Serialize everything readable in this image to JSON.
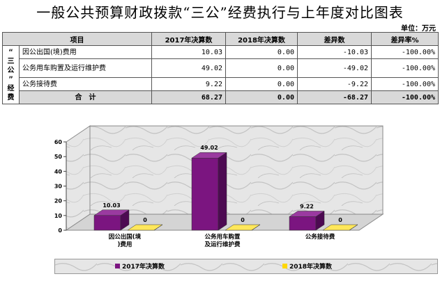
{
  "title": "一般公共预算财政拨款“三公”经费执行与上年度对比图表",
  "unit": "单位：万元",
  "table": {
    "headers": [
      "项目",
      "2017年决算数",
      "2018年决算数",
      "差异数",
      "差异率%"
    ],
    "group_label": "“三公”经费",
    "rows": [
      {
        "label": "因公出国(境)费用",
        "v2017": "10.03",
        "v2018": "0.00",
        "diff": "-10.03",
        "rate": "-100.00%"
      },
      {
        "label": "公务用车购置及运行维护费",
        "v2017": "49.02",
        "v2018": "0.00",
        "diff": "-49.02",
        "rate": "-100.00%"
      },
      {
        "label": "公务接待费",
        "v2017": "9.22",
        "v2018": "0.00",
        "diff": "-9.22",
        "rate": "-100.00%"
      }
    ],
    "total": {
      "label": "合　计",
      "v2017": "68.27",
      "v2018": "0.00",
      "diff": "-68.27",
      "rate": "-100.00%"
    }
  },
  "colors": {
    "series2017": "#7b1580",
    "series2018": "#ffd700"
  },
  "chart_data": {
    "type": "bar",
    "categories": [
      "因公出国(境)费用",
      "公务用车购置及运行维护费",
      "公务接待费"
    ],
    "series": [
      {
        "name": "2017年决算数",
        "values": [
          10.03,
          49.02,
          9.22
        ]
      },
      {
        "name": "2018年决算数",
        "values": [
          0,
          0,
          0
        ]
      }
    ],
    "data_labels": [
      [
        "10.03",
        "49.02",
        "9.22"
      ],
      [
        "0",
        "0",
        "0"
      ]
    ],
    "y_ticks": [
      "0",
      "10",
      "20",
      "30",
      "40",
      "50",
      "60"
    ],
    "ylim": [
      0,
      60
    ],
    "grid": false,
    "legend_position": "bottom",
    "style": "3d"
  }
}
